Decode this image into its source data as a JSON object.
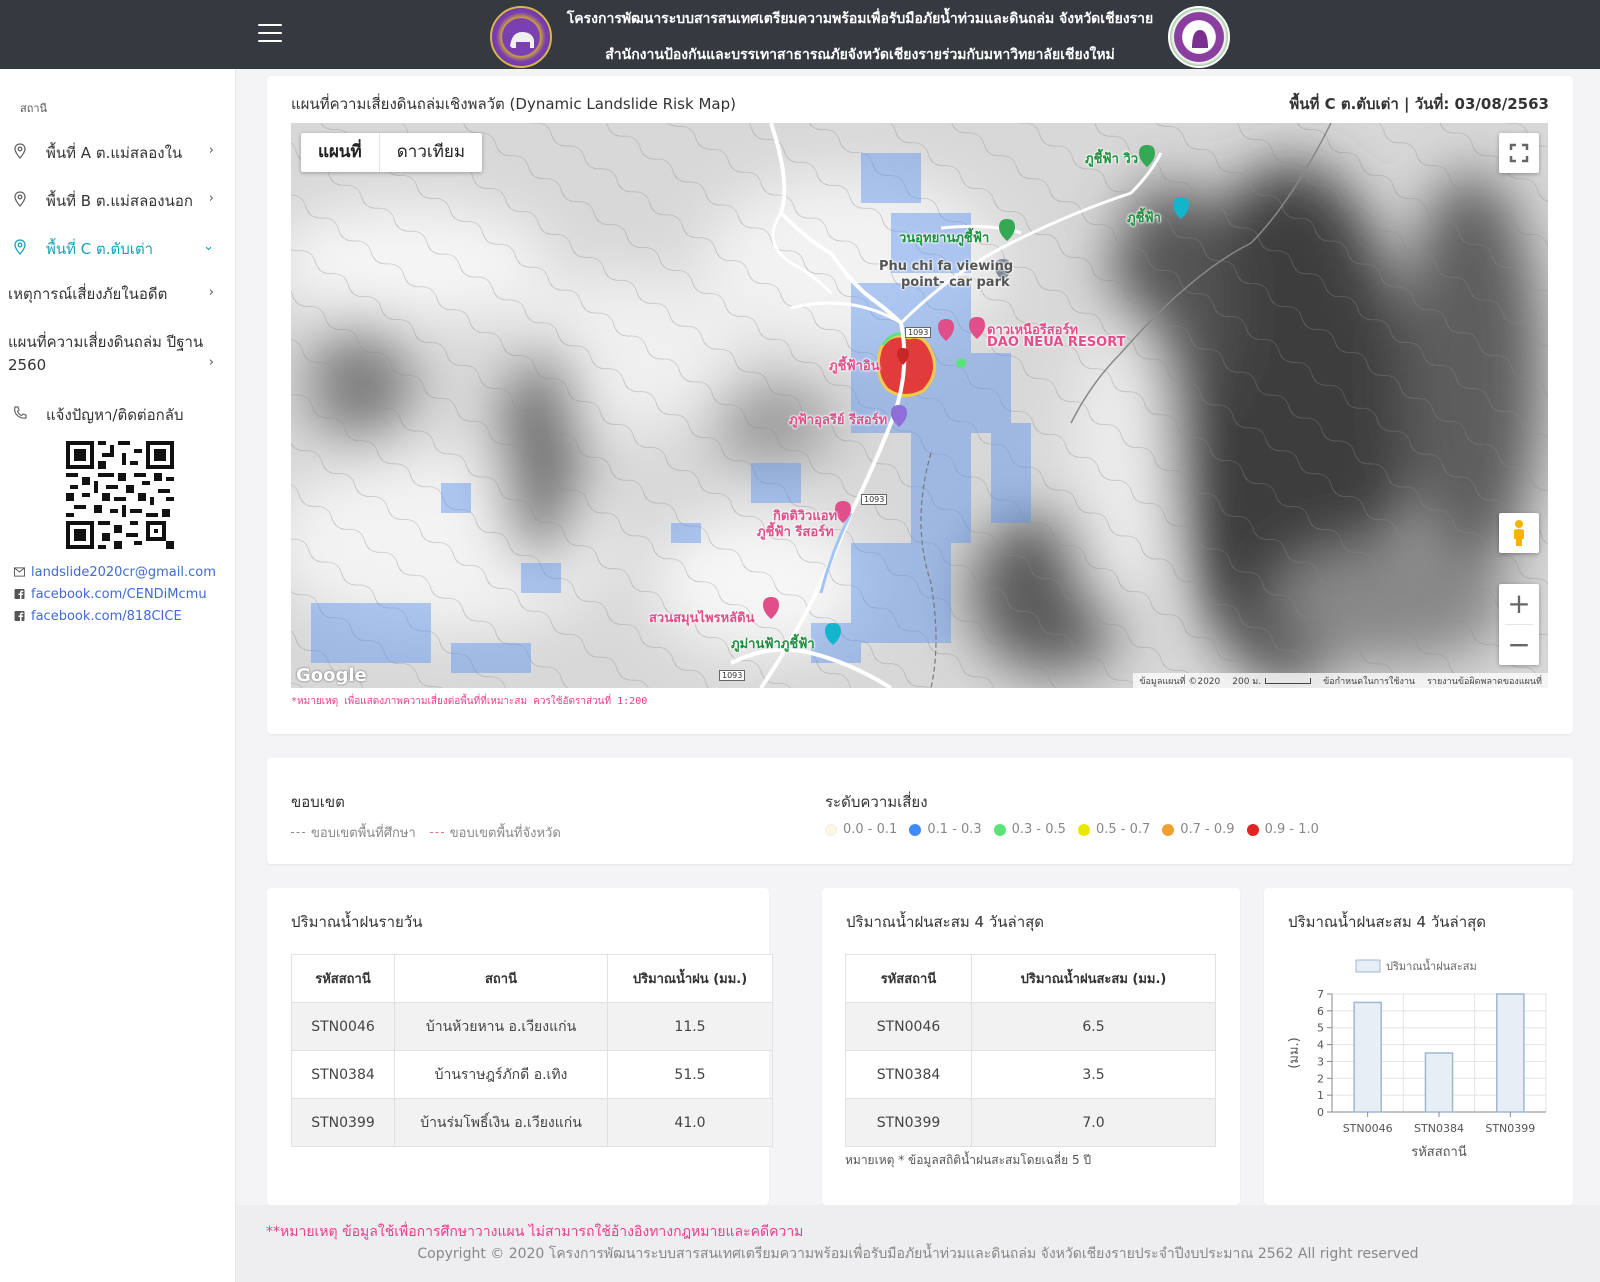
{
  "header": {
    "title_line1": "โครงการพัฒนาระบบสารสนเทศเตรียมความพร้อมเพื่อรับมือภัยน้ำท่วมและดินถล่ม จังหวัดเชียงราย",
    "title_line2": "สำนักงานป้องกันและบรรเทาสาธารณภัยจังหวัดเชียงรายร่วมกับมหาวิทยาลัยเชียงใหม่"
  },
  "sidebar": {
    "section_label": "สถานี",
    "items": [
      {
        "label": "พื้นที่ A ต.แม่สลองใน"
      },
      {
        "label": "พื้นที่ B ต.แม่สลองนอก"
      },
      {
        "label": "พื้นที่ C ต.ตับเต่า"
      },
      {
        "label": "เหตุการณ์เสี่ยงภัยในอดีต"
      },
      {
        "label": "แผนที่ความเสี่ยงดินถล่ม ปีฐาน 2560"
      },
      {
        "label": "แจ้งปัญหา/ติดต่อกลับ"
      }
    ],
    "contacts": {
      "email": "landslide2020cr@gmail.com",
      "facebook1": "facebook.com/CENDiMcmu",
      "facebook2": "facebook.com/818CICE"
    }
  },
  "map_card": {
    "title": "แผนที่ความเสี่ยงดินถล่มเชิงพลวัต (Dynamic Landslide Risk Map)",
    "area_date": "พื้นที่ C ต.ตับเต่า | วันที่: 03/08/2563",
    "tabs": [
      "แผนที่",
      "ดาวเทียม"
    ],
    "google_label": "Google",
    "footer_items": [
      "ข้อมูลแผนที่ ©2020",
      "200 ม.",
      "ข้อกำหนดในการใช้งาน",
      "รายงานข้อผิดพลาดของแผนที่"
    ],
    "poi": {
      "p1": "ภูชี้ฟ้า วิว",
      "p2": "ภูชี้ฟ้า",
      "p3": "วนอุทยานภูชี้ฟ้า",
      "p4": "Phu chi fa viewing",
      "p5": "point- car park",
      "p6": "ดาวเหนือรีสอร์ท",
      "p7": "DAO NEUA RESORT",
      "p8": "ภูชี้ฟ้าอิน",
      "p9": "ภูฟ้าอุลรีย์ รีสอร์ท",
      "p10": "กิตติวิวแอท",
      "p11": "ภูชี้ฟ้า รีสอร์ท",
      "p12": "สวนสมุนไพรหลัดิน",
      "p13": "ภูม่านฟ้าภูชี้ฟ้า",
      "r1": "1093",
      "r2": "1093",
      "r3": "1093"
    },
    "note": "*หมายเหตุ เพื่อแสดงภาพความเสี่ยงต่อพื้นที่ที่เหมาะสม ควรใช้อัตราส่วนที่ 1:200"
  },
  "legend": {
    "boundary_title": "ขอบเขต",
    "boundary_items": [
      "ขอบเขตพื้นที่ศึกษา",
      "ขอบเขตพื้นที่จังหวัด"
    ],
    "risk_title": "ระดับความเสี่ยง",
    "risk_items": [
      {
        "label": "0.0 - 0.1",
        "color": "#fdf6e3"
      },
      {
        "label": "0.1 - 0.3",
        "color": "#3d8bfd"
      },
      {
        "label": "0.3 - 0.5",
        "color": "#5be37a"
      },
      {
        "label": "0.5 - 0.7",
        "color": "#e8e800"
      },
      {
        "label": "0.7 - 0.9",
        "color": "#f0a030"
      },
      {
        "label": "0.9 - 1.0",
        "color": "#e02424"
      }
    ]
  },
  "daily_rain": {
    "title": "ปริมาณน้ำฝนรายวัน",
    "headers": [
      "รหัสสถานี",
      "สถานี",
      "ปริมาณน้ำฝน (มม.)"
    ],
    "rows": [
      [
        "STN0046",
        "บ้านห้วยหาน อ.เวียงแก่น",
        "11.5"
      ],
      [
        "STN0384",
        "บ้านราษฎร์ภักดี อ.เทิง",
        "51.5"
      ],
      [
        "STN0399",
        "บ้านร่มโพธิ์เงิน อ.เวียงแก่น",
        "41.0"
      ]
    ]
  },
  "accum_rain": {
    "title": "ปริมาณน้ำฝนสะสม 4 วันล่าสุด",
    "headers": [
      "รหัสสถานี",
      "ปริมาณน้ำฝนสะสม (มม.)"
    ],
    "rows": [
      [
        "STN0046",
        "6.5"
      ],
      [
        "STN0384",
        "3.5"
      ],
      [
        "STN0399",
        "7.0"
      ]
    ],
    "note": "หมายเหตุ * ข้อมูลสถิติน้ำฝนสะสมโดยเฉลี่ย 5 ปี"
  },
  "chart_card": {
    "title": "ปริมาณน้ำฝนสะสม 4 วันล่าสุด"
  },
  "chart_data": {
    "type": "bar",
    "categories": [
      "STN0046",
      "STN0384",
      "STN0399"
    ],
    "series": [
      {
        "name": "ปริมาณน้ำฝนสะสม",
        "values": [
          6.5,
          3.5,
          7.0
        ]
      }
    ],
    "xlabel": "รหัสสถานี",
    "ylabel": "(มม.)",
    "ylim": [
      0,
      7
    ],
    "yticks": [
      0,
      1,
      2,
      3,
      4,
      5,
      6,
      7
    ],
    "legend_position": "top",
    "grid": true,
    "bar_fill": "#e8eef5",
    "bar_stroke": "#9fb8cf"
  },
  "footer": {
    "note": "**หมายเหตุ ข้อมูลใช้เพื่อการศึกษาวางแผน ไม่สามารถใช้อ้างอิงทางกฎหมายและคดีความ",
    "copyright": "Copyright © 2020 โครงการพัฒนาระบบสารสนเทศเตรียมความพร้อมเพื่อรับมือภัยน้ำท่วมและดินถล่ม จังหวัดเชียงรายประจำปีงบประมาณ 2562 All right reserved"
  }
}
